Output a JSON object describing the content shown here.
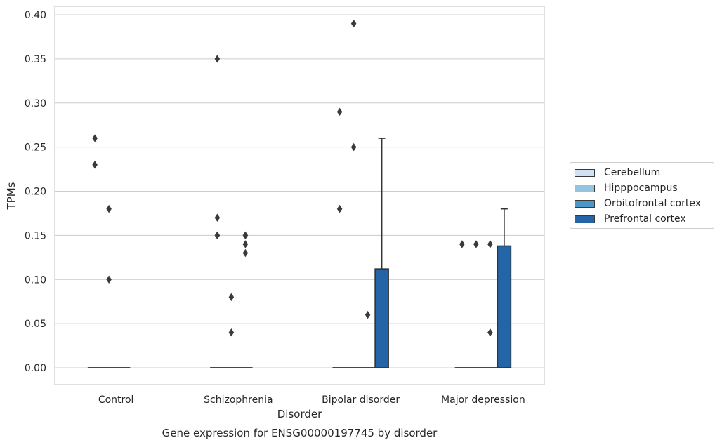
{
  "chart_data": {
    "type": "box",
    "title": "Gene expression for ENSG00000197745 by disorder",
    "xlabel": "Disorder",
    "ylabel": "TPMs",
    "ylim": [
      -0.018,
      0.41
    ],
    "yticks": [
      0.0,
      0.05,
      0.1,
      0.15,
      0.2,
      0.25,
      0.3,
      0.35,
      0.4
    ],
    "ytick_labels": [
      "0.00",
      "0.05",
      "0.10",
      "0.15",
      "0.20",
      "0.25",
      "0.30",
      "0.35",
      "0.40"
    ],
    "grid": true,
    "legend_position": "right",
    "categories": [
      "Control",
      "Schizophrenia",
      "Bipolar disorder",
      "Major depression"
    ],
    "series": [
      {
        "name": "Cerebellum",
        "color": "#d0e1f2",
        "boxes": [
          {
            "category": "Control",
            "whisker_low": 0,
            "q1": 0,
            "median": 0,
            "q3": 0,
            "whisker_high": 0,
            "outliers": [
              0.26,
              0.23
            ]
          },
          {
            "category": "Schizophrenia",
            "whisker_low": 0,
            "q1": 0,
            "median": 0,
            "q3": 0,
            "whisker_high": 0,
            "outliers": [
              0.35,
              0.17,
              0.15
            ]
          },
          {
            "category": "Bipolar disorder",
            "whisker_low": 0,
            "q1": 0,
            "median": 0,
            "q3": 0,
            "whisker_high": 0,
            "outliers": [
              0.29,
              0.18
            ]
          },
          {
            "category": "Major depression",
            "whisker_low": 0,
            "q1": 0,
            "median": 0,
            "q3": 0,
            "whisker_high": 0,
            "outliers": [
              0.14
            ]
          }
        ]
      },
      {
        "name": "Hipppocampus",
        "color": "#94c4df",
        "boxes": [
          {
            "category": "Control",
            "whisker_low": 0,
            "q1": 0,
            "median": 0,
            "q3": 0,
            "whisker_high": 0,
            "outliers": [
              0.18,
              0.1
            ]
          },
          {
            "category": "Schizophrenia",
            "whisker_low": 0,
            "q1": 0,
            "median": 0,
            "q3": 0,
            "whisker_high": 0,
            "outliers": [
              0.08,
              0.04
            ]
          },
          {
            "category": "Bipolar disorder",
            "whisker_low": 0,
            "q1": 0,
            "median": 0,
            "q3": 0,
            "whisker_high": 0,
            "outliers": [
              0.39,
              0.25
            ]
          },
          {
            "category": "Major depression",
            "whisker_low": 0,
            "q1": 0,
            "median": 0,
            "q3": 0,
            "whisker_high": 0,
            "outliers": [
              0.14
            ]
          }
        ]
      },
      {
        "name": "Orbitofrontal cortex",
        "color": "#4a98c9",
        "boxes": [
          {
            "category": "Control",
            "whisker_low": 0,
            "q1": 0,
            "median": 0,
            "q3": 0,
            "whisker_high": 0,
            "outliers": []
          },
          {
            "category": "Schizophrenia",
            "whisker_low": 0,
            "q1": 0,
            "median": 0,
            "q3": 0,
            "whisker_high": 0,
            "outliers": [
              0.15,
              0.14,
              0.13
            ]
          },
          {
            "category": "Bipolar disorder",
            "whisker_low": 0,
            "q1": 0,
            "median": 0,
            "q3": 0,
            "whisker_high": 0,
            "outliers": [
              0.06
            ]
          },
          {
            "category": "Major depression",
            "whisker_low": 0,
            "q1": 0,
            "median": 0,
            "q3": 0,
            "whisker_high": 0,
            "outliers": [
              0.14,
              0.04
            ]
          }
        ]
      },
      {
        "name": "Prefrontal cortex",
        "color": "#2465a8",
        "boxes": [
          {
            "category": "Control",
            "whisker_low": null,
            "q1": null,
            "median": null,
            "q3": null,
            "whisker_high": null,
            "outliers": []
          },
          {
            "category": "Schizophrenia",
            "whisker_low": null,
            "q1": null,
            "median": null,
            "q3": null,
            "whisker_high": null,
            "outliers": []
          },
          {
            "category": "Bipolar disorder",
            "whisker_low": 0,
            "q1": 0,
            "median": 0,
            "q3": 0.112,
            "whisker_high": 0.26,
            "outliers": []
          },
          {
            "category": "Major depression",
            "whisker_low": 0,
            "q1": 0,
            "median": 0,
            "q3": 0.138,
            "whisker_high": 0.18,
            "outliers": []
          }
        ]
      }
    ]
  }
}
